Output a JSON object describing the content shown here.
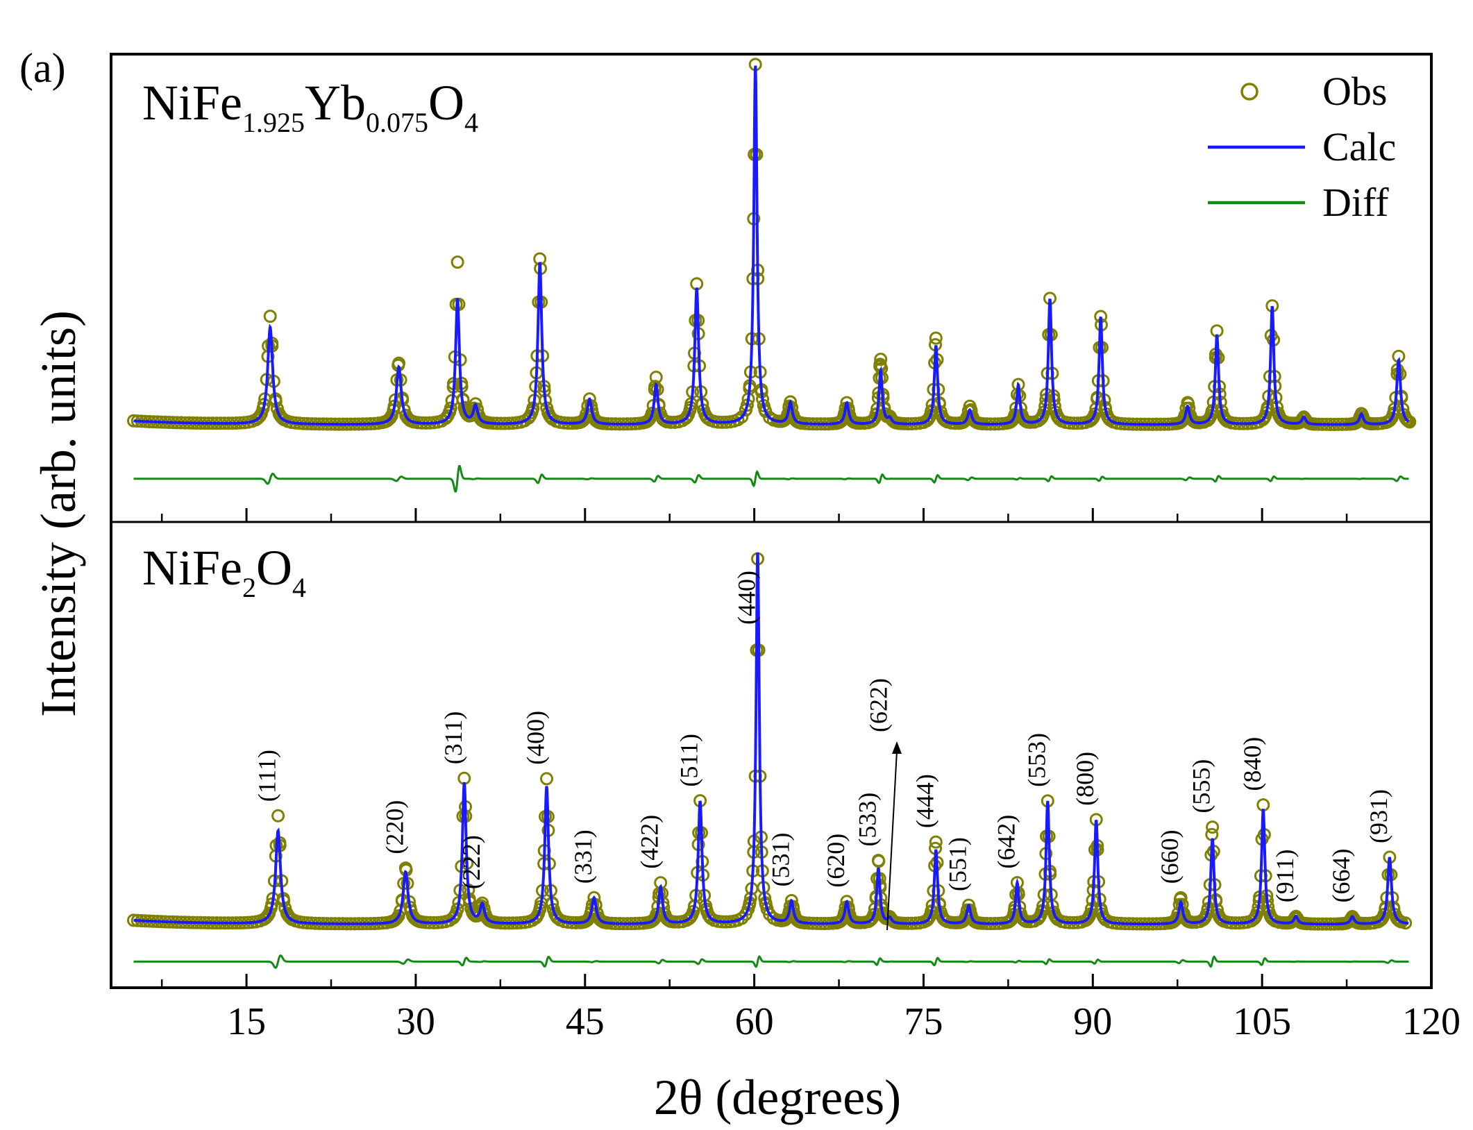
{
  "chart_data": {
    "type": "line",
    "panel_label": "(a)",
    "xlabel": "2θ (degrees)",
    "ylabel": "Intensity (arb. units)",
    "xlim": [
      3,
      120
    ],
    "xticks": [
      "15",
      "30",
      "45",
      "60",
      "75",
      "90",
      "105",
      "120"
    ],
    "legend": {
      "position": "top-right",
      "entries": [
        {
          "label": "Obs",
          "marker": "circle",
          "color": "#808000"
        },
        {
          "label": "Calc",
          "marker": "line",
          "color": "#1a1aff"
        },
        {
          "label": "Diff",
          "marker": "line",
          "color": "#138a13"
        }
      ]
    },
    "colors": {
      "obs": "#808000",
      "calc": "#1a1aff",
      "diff": "#138a13"
    },
    "panels": [
      {
        "title_parts": [
          {
            "text": "NiFe",
            "sub": false
          },
          {
            "text": "1.925",
            "sub": true
          },
          {
            "text": "Yb",
            "sub": false
          },
          {
            "text": "0.075",
            "sub": true
          },
          {
            "text": "O",
            "sub": false
          },
          {
            "text": "4",
            "sub": true
          }
        ],
        "ylim": [
          -25,
          105
        ],
        "background": 2,
        "diff_baseline": -13,
        "peaks": [
          {
            "x": 17.1,
            "calc": 27,
            "obs": 30,
            "width": 0.45
          },
          {
            "x": 28.5,
            "calc": 16,
            "obs": 17,
            "width": 0.45
          },
          {
            "x": 33.7,
            "calc": 35,
            "obs": 45,
            "width": 0.35
          },
          {
            "x": 35.3,
            "calc": 5,
            "obs": 5,
            "width": 0.4
          },
          {
            "x": 41.0,
            "calc": 45,
            "obs": 46,
            "width": 0.35
          },
          {
            "x": 45.4,
            "calc": 7,
            "obs": 7,
            "width": 0.4
          },
          {
            "x": 51.3,
            "calc": 11,
            "obs": 13,
            "width": 0.35
          },
          {
            "x": 54.9,
            "calc": 38,
            "obs": 39,
            "width": 0.35
          },
          {
            "x": 60.1,
            "calc": 100,
            "obs": 100,
            "width": 0.3
          },
          {
            "x": 63.2,
            "calc": 6,
            "obs": 6,
            "width": 0.35
          },
          {
            "x": 68.2,
            "calc": 6,
            "obs": 6,
            "width": 0.35
          },
          {
            "x": 71.2,
            "calc": 15,
            "obs": 18,
            "width": 0.3
          },
          {
            "x": 72.0,
            "calc": 1.5,
            "obs": 1.5,
            "width": 0.35
          },
          {
            "x": 76.1,
            "calc": 22,
            "obs": 24,
            "width": 0.3
          },
          {
            "x": 79.1,
            "calc": 4,
            "obs": 5,
            "width": 0.35
          },
          {
            "x": 83.4,
            "calc": 11,
            "obs": 11,
            "width": 0.3
          },
          {
            "x": 86.2,
            "calc": 35,
            "obs": 35,
            "width": 0.3
          },
          {
            "x": 90.7,
            "calc": 30,
            "obs": 30,
            "width": 0.3
          },
          {
            "x": 98.4,
            "calc": 5,
            "obs": 6,
            "width": 0.35
          },
          {
            "x": 101.0,
            "calc": 25,
            "obs": 26,
            "width": 0.3
          },
          {
            "x": 105.9,
            "calc": 33,
            "obs": 33,
            "width": 0.3
          },
          {
            "x": 108.7,
            "calc": 2,
            "obs": 2,
            "width": 0.35
          },
          {
            "x": 113.8,
            "calc": 3,
            "obs": 3,
            "width": 0.35
          },
          {
            "x": 117.1,
            "calc": 18,
            "obs": 19,
            "width": 0.35
          }
        ]
      },
      {
        "title_parts": [
          {
            "text": "NiFe",
            "sub": false
          },
          {
            "text": "2",
            "sub": true
          },
          {
            "text": "O",
            "sub": false
          },
          {
            "text": "4",
            "sub": true
          }
        ],
        "ylim": [
          -15,
          110
        ],
        "background": 2,
        "diff_baseline": -8,
        "peaks": [
          {
            "x": 17.8,
            "calc": 25,
            "obs": 29,
            "width": 0.45
          },
          {
            "x": 29.1,
            "calc": 14,
            "obs": 15,
            "width": 0.45
          },
          {
            "x": 34.3,
            "calc": 38,
            "obs": 39,
            "width": 0.35
          },
          {
            "x": 35.9,
            "calc": 5,
            "obs": 5,
            "width": 0.4
          },
          {
            "x": 41.6,
            "calc": 37,
            "obs": 39,
            "width": 0.35
          },
          {
            "x": 45.8,
            "calc": 7,
            "obs": 7,
            "width": 0.4
          },
          {
            "x": 51.7,
            "calc": 10,
            "obs": 11,
            "width": 0.35
          },
          {
            "x": 55.2,
            "calc": 33,
            "obs": 33,
            "width": 0.35
          },
          {
            "x": 60.3,
            "calc": 100,
            "obs": 98,
            "width": 0.3
          },
          {
            "x": 63.3,
            "calc": 6,
            "obs": 6,
            "width": 0.35
          },
          {
            "x": 68.2,
            "calc": 6,
            "obs": 6,
            "width": 0.35
          },
          {
            "x": 71.0,
            "calc": 15,
            "obs": 17,
            "width": 0.3
          },
          {
            "x": 72.0,
            "calc": 1.5,
            "obs": 1.5,
            "width": 0.35
          },
          {
            "x": 76.1,
            "calc": 20,
            "obs": 22,
            "width": 0.3
          },
          {
            "x": 79.0,
            "calc": 5,
            "obs": 5,
            "width": 0.35
          },
          {
            "x": 83.3,
            "calc": 11,
            "obs": 11,
            "width": 0.3
          },
          {
            "x": 86.0,
            "calc": 33,
            "obs": 33,
            "width": 0.3
          },
          {
            "x": 90.3,
            "calc": 28,
            "obs": 28,
            "width": 0.3
          },
          {
            "x": 97.8,
            "calc": 6,
            "obs": 7,
            "width": 0.35
          },
          {
            "x": 100.6,
            "calc": 23,
            "obs": 26,
            "width": 0.3
          },
          {
            "x": 105.1,
            "calc": 31,
            "obs": 32,
            "width": 0.3
          },
          {
            "x": 108.0,
            "calc": 2,
            "obs": 2,
            "width": 0.35
          },
          {
            "x": 113.0,
            "calc": 2,
            "obs": 2,
            "width": 0.35
          },
          {
            "x": 116.3,
            "calc": 18,
            "obs": 18,
            "width": 0.35
          }
        ],
        "hkl_labels": [
          {
            "text": "(111)",
            "x": 17.8
          },
          {
            "text": "(220)",
            "x": 29.1
          },
          {
            "text": "(311)",
            "x": 34.3
          },
          {
            "text": "(222)",
            "x": 35.9
          },
          {
            "text": "(400)",
            "x": 41.6
          },
          {
            "text": "(331)",
            "x": 45.8
          },
          {
            "text": "(422)",
            "x": 51.7
          },
          {
            "text": "(511)",
            "x": 55.2
          },
          {
            "text": "(440)",
            "x": 60.3
          },
          {
            "text": "(531)",
            "x": 63.3
          },
          {
            "text": "(620)",
            "x": 68.2
          },
          {
            "text": "(533)",
            "x": 71.0
          },
          {
            "text": "(622)",
            "x": 72.0
          },
          {
            "text": "(444)",
            "x": 76.1
          },
          {
            "text": "(551)",
            "x": 79.0
          },
          {
            "text": "(642)",
            "x": 83.3
          },
          {
            "text": "(553)",
            "x": 86.0
          },
          {
            "text": "(800)",
            "x": 90.3
          },
          {
            "text": "(660)",
            "x": 97.8
          },
          {
            "text": "(555)",
            "x": 100.6
          },
          {
            "text": "(840)",
            "x": 105.1
          },
          {
            "text": "(911)",
            "x": 108.0
          },
          {
            "text": "(664)",
            "x": 113.0
          },
          {
            "text": "(931)",
            "x": 116.3
          }
        ]
      }
    ]
  }
}
